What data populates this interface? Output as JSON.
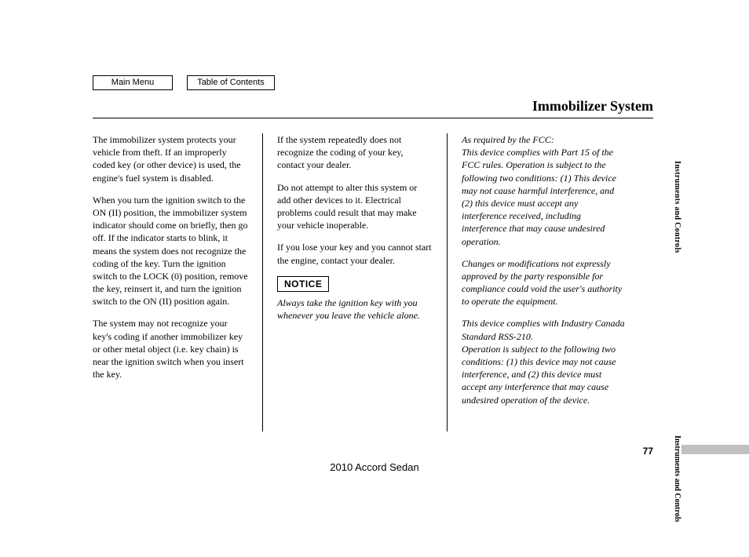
{
  "nav": {
    "main_menu": "Main Menu",
    "toc": "Table of Contents"
  },
  "title": "Immobilizer System",
  "col1": {
    "p1": "The immobilizer system protects your vehicle from theft. If an improperly coded key (or other device) is used, the engine's fuel system is disabled.",
    "p2": "When you turn the ignition switch to the ON (II) position, the immobilizer system indicator should come on briefly, then go off. If the indicator starts to blink, it means the system does not recognize the coding of the key. Turn the ignition switch to the LOCK (0) position, remove the key, reinsert it, and turn the ignition switch to the ON (II) position again.",
    "p3": "The system may not recognize your key's coding if another immobilizer key or other metal object (i.e. key chain) is near the ignition switch when you insert the key."
  },
  "col2": {
    "p1": "If the system repeatedly does not recognize the coding of your key, contact your dealer.",
    "p2": "Do not attempt to alter this system or add other devices to it. Electrical problems could result that may make your vehicle inoperable.",
    "p3": "If you lose your key and you cannot start the engine, contact your dealer.",
    "notice_label": "NOTICE",
    "notice_text": "Always take the ignition key with you whenever you leave the vehicle alone."
  },
  "col3": {
    "p1": "As required by the FCC:\nThis device complies with Part 15 of the FCC rules. Operation is subject to the following two conditions: (1) This device may not cause harmful interference, and (2) this device must accept any interference received, including interference that may cause undesired operation.",
    "p2": "Changes or modifications not expressly approved by the party responsible for compliance could void the user's authority to operate the equipment.",
    "p3": "This device complies with Industry Canada Standard RSS-210.\nOperation is subject to the following two conditions: (1) this device may not cause interference, and (2) this device must accept any interference that may cause undesired operation of the device."
  },
  "side_label": "Instruments and Controls",
  "side_label2": "Instruments and Controls",
  "page_number": "77",
  "footer": "2010 Accord Sedan",
  "colors": {
    "text": "#000000",
    "bg": "#ffffff",
    "tab": "#c0c0c0"
  }
}
